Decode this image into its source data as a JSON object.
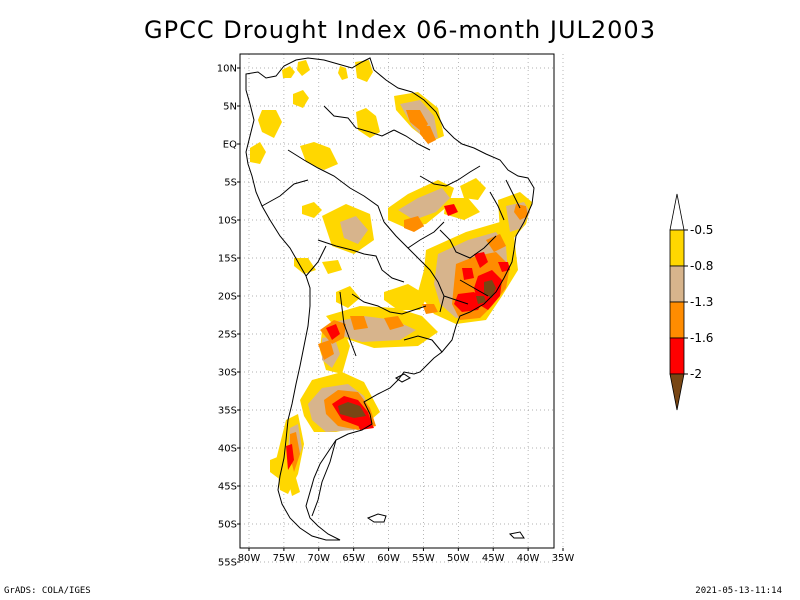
{
  "title": "GPCC Drought Index 06-month JUL2003",
  "footer": {
    "left": "GrADS: COLA/IGES",
    "right": "2021-05-13-11:14"
  },
  "map": {
    "region": "South America",
    "lon_range": [
      -80,
      -35
    ],
    "lat_range": [
      -55,
      10
    ],
    "grid": "dotted",
    "lat_ticks": [
      {
        "value": 10,
        "label": "10N"
      },
      {
        "value": 5,
        "label": "5N"
      },
      {
        "value": 0,
        "label": "EQ"
      },
      {
        "value": -5,
        "label": "5S"
      },
      {
        "value": -10,
        "label": "10S"
      },
      {
        "value": -15,
        "label": "15S"
      },
      {
        "value": -20,
        "label": "20S"
      },
      {
        "value": -25,
        "label": "25S"
      },
      {
        "value": -30,
        "label": "30S"
      },
      {
        "value": -35,
        "label": "35S"
      },
      {
        "value": -40,
        "label": "40S"
      },
      {
        "value": -45,
        "label": "45S"
      },
      {
        "value": -50,
        "label": "50S"
      },
      {
        "value": -55,
        "label": "55S"
      }
    ],
    "lon_ticks": [
      {
        "value": -80,
        "label": "80W"
      },
      {
        "value": -75,
        "label": "75W"
      },
      {
        "value": -70,
        "label": "70W"
      },
      {
        "value": -65,
        "label": "65W"
      },
      {
        "value": -60,
        "label": "60W"
      },
      {
        "value": -55,
        "label": "55W"
      },
      {
        "value": -50,
        "label": "50W"
      },
      {
        "value": -45,
        "label": "45W"
      },
      {
        "value": -40,
        "label": "40W"
      },
      {
        "value": -35,
        "label": "35W"
      }
    ]
  },
  "legend": {
    "colors": [
      "#784614",
      "#ff0000",
      "#ff8c00",
      "#d7b48c",
      "#ffd700"
    ],
    "labels": [
      "-0.5",
      "-0.8",
      "-1.3",
      "-1.6",
      "-2"
    ]
  }
}
